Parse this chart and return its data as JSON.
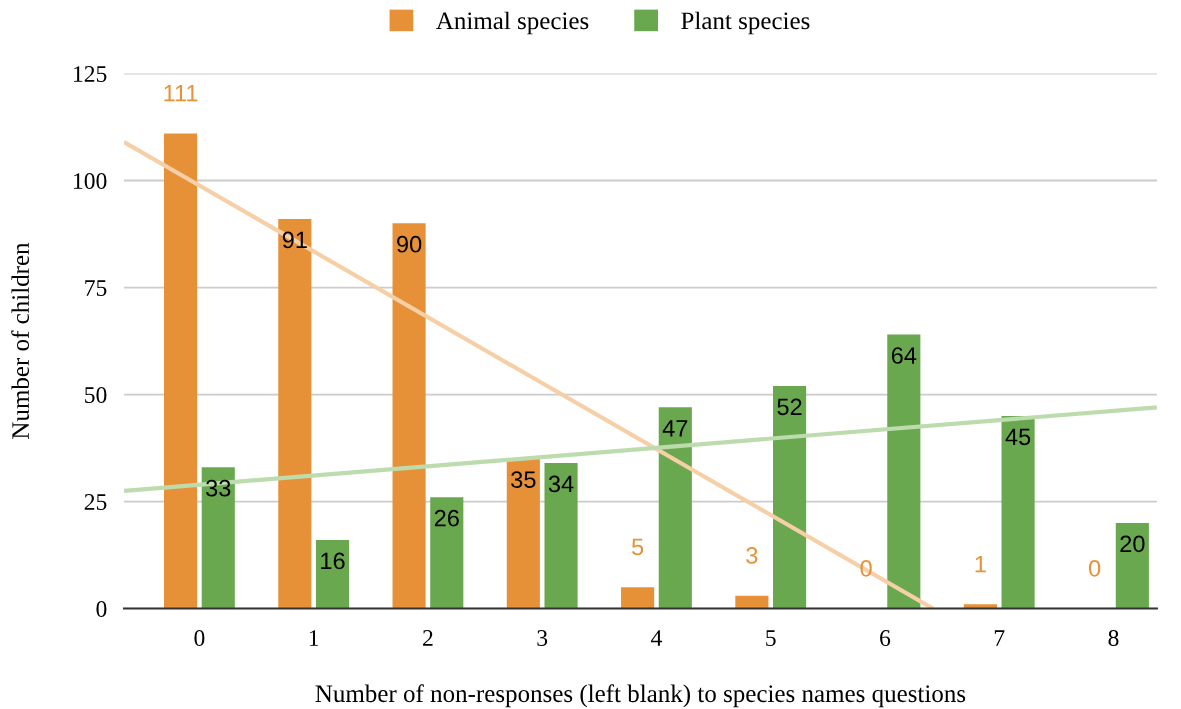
{
  "chart_data": {
    "type": "bar",
    "xlabel": "Number of non-responses (left blank) to species names questions",
    "ylabel": "Number of children",
    "x": [
      0,
      1,
      2,
      3,
      4,
      5,
      6,
      7,
      8
    ],
    "xlim": [
      -0.66,
      8.38
    ],
    "xticks": [
      0,
      1,
      2,
      3,
      4,
      5,
      6,
      7,
      8
    ],
    "ylim": [
      0,
      125
    ],
    "yticks": [
      0,
      25,
      50,
      75,
      100,
      125
    ],
    "grid": "y",
    "legend": "top",
    "series": [
      {
        "name": "Animal species",
        "color": "#e69138",
        "values": [
          111,
          91,
          90,
          35,
          5,
          3,
          0,
          1,
          0
        ],
        "value_labels": [
          "111",
          "91",
          "90",
          "35",
          "5",
          "3",
          "0",
          "1",
          "0"
        ]
      },
      {
        "name": "Plant species",
        "color": "#6aa84f",
        "values": [
          33,
          16,
          26,
          34,
          47,
          52,
          64,
          45,
          20
        ],
        "value_labels": [
          "33",
          "16",
          "26",
          "34",
          "47",
          "52",
          "64",
          "45",
          "20"
        ]
      },
      {
        "type": "line",
        "color": "#f6cfa6",
        "x": [
          -0.66,
          6.42
        ],
        "values": [
          109,
          0
        ]
      },
      {
        "type": "line",
        "color": "#bcdcae",
        "x": [
          -0.66,
          8.38
        ],
        "values": [
          27.5,
          47
        ]
      }
    ]
  }
}
